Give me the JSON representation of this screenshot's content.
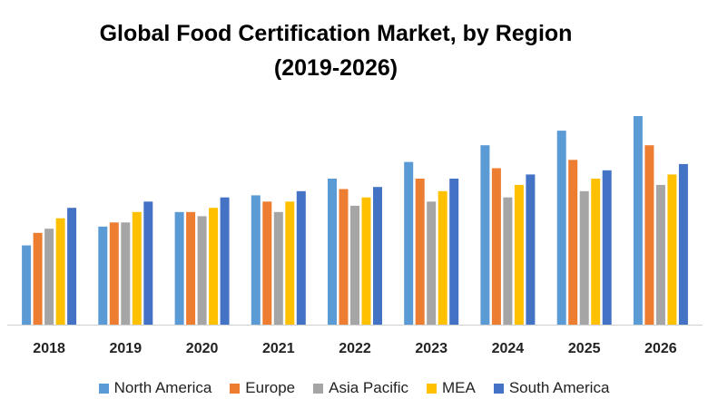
{
  "chart_data": {
    "type": "bar",
    "title_line1": "Global Food Certification Market, by Region",
    "title_line2": "(2019-2026)",
    "xlabel": "",
    "ylabel": "",
    "ylim": [
      0,
      100
    ],
    "grid": false,
    "legend_position": "bottom",
    "categories": [
      "2018",
      "2019",
      "2020",
      "2021",
      "2022",
      "2023",
      "2024",
      "2025",
      "2026"
    ],
    "series": [
      {
        "name": "North America",
        "color": "#5B9BD5",
        "values": [
          38,
          47,
          54,
          62,
          70,
          78,
          86,
          93,
          100
        ]
      },
      {
        "name": "Europe",
        "color": "#ED7D31",
        "values": [
          44,
          49,
          54,
          59,
          65,
          70,
          75,
          79,
          86
        ]
      },
      {
        "name": "Asia Pacific",
        "color": "#A5A5A5",
        "values": [
          46,
          49,
          52,
          54,
          57,
          59,
          61,
          64,
          67
        ]
      },
      {
        "name": "MEA",
        "color": "#FFC000",
        "values": [
          51,
          54,
          56,
          59,
          61,
          64,
          67,
          70,
          72
        ]
      },
      {
        "name": "South America",
        "color": "#4472C4",
        "values": [
          56,
          59,
          61,
          64,
          66,
          70,
          72,
          74,
          77
        ]
      }
    ]
  }
}
